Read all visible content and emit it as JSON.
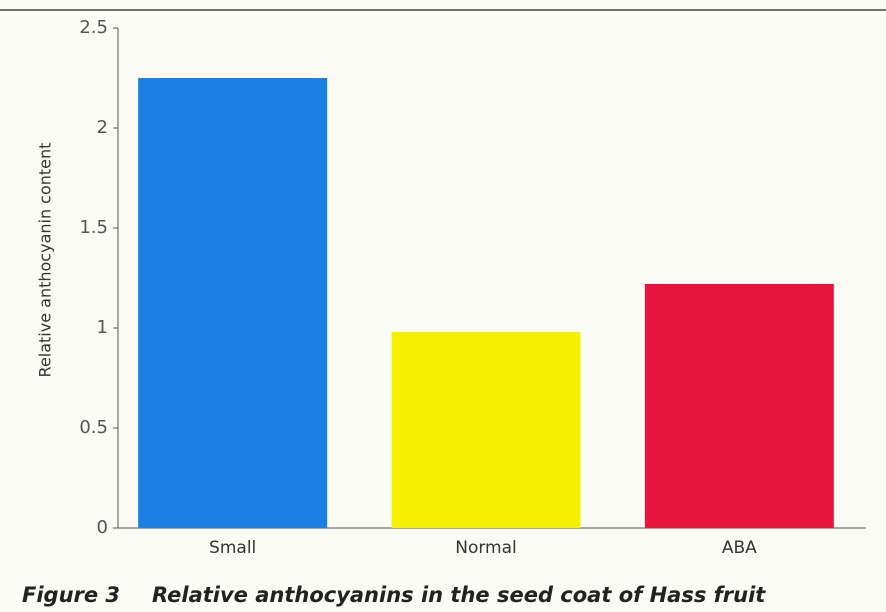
{
  "chart_data": {
    "type": "bar",
    "figure_label": "Figure 3",
    "title": "Relative anthocyanins in the seed coat of Hass fruit",
    "y_label": "Relative anthocyanin content",
    "categories": [
      "Small",
      "Normal",
      "ABA"
    ],
    "values": [
      2.25,
      0.98,
      1.22
    ],
    "colors": [
      "#1a7fe3",
      "#f4f000",
      "#e8143e"
    ],
    "ylim": [
      0,
      2.5
    ],
    "yticks": [
      0,
      0.5,
      1,
      1.5,
      2,
      2.5
    ],
    "grid": false
  }
}
